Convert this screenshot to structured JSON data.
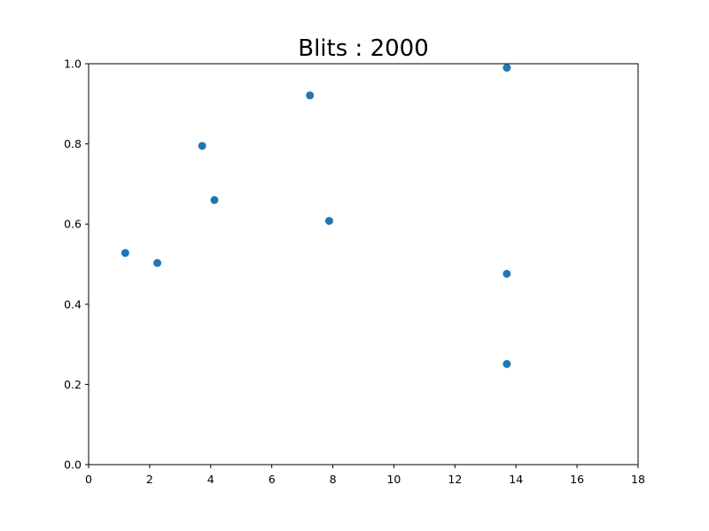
{
  "chart_data": {
    "type": "scatter",
    "title": "Blits : 2000",
    "xlabel": "",
    "ylabel": "",
    "xlim": [
      0,
      18
    ],
    "ylim": [
      0,
      1
    ],
    "xticks": [
      0,
      2,
      4,
      6,
      8,
      10,
      12,
      14,
      16,
      18
    ],
    "xtick_labels": [
      "0",
      "2",
      "4",
      "6",
      "8",
      "10",
      "12",
      "14",
      "16",
      "18"
    ],
    "yticks": [
      0,
      0.2,
      0.4,
      0.6,
      0.8,
      1.0
    ],
    "ytick_labels": [
      "0.0",
      "0.2",
      "0.4",
      "0.6",
      "0.8",
      "1.0"
    ],
    "grid": false,
    "marker_color": "#1f77b4",
    "points": [
      {
        "x": 1.2,
        "y": 0.528
      },
      {
        "x": 2.25,
        "y": 0.503
      },
      {
        "x": 3.72,
        "y": 0.795
      },
      {
        "x": 4.12,
        "y": 0.66
      },
      {
        "x": 7.25,
        "y": 0.921
      },
      {
        "x": 7.88,
        "y": 0.608
      },
      {
        "x": 13.7,
        "y": 0.99
      },
      {
        "x": 13.7,
        "y": 0.476
      },
      {
        "x": 13.7,
        "y": 0.251
      }
    ]
  }
}
